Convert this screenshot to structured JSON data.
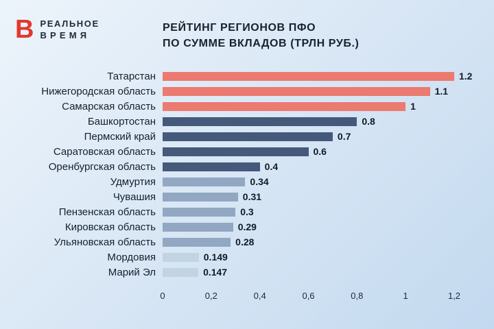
{
  "header": {
    "logo": {
      "mark": "В",
      "line1": "РЕАЛЬНОЕ",
      "line2": "ВРЕМЯ",
      "mark_color": "#e2382c"
    },
    "title_line1": "РЕЙТИНГ РЕГИОНОВ ПФО",
    "title_line2": "ПО СУММЕ ВКЛАДОВ (ТРЛН РУБ.)"
  },
  "chart_data": {
    "type": "bar",
    "orientation": "horizontal",
    "title": "РЕЙТИНГ РЕГИОНОВ ПФО ПО СУММЕ ВКЛАДОВ (ТРЛН РУБ.)",
    "categories": [
      "Татарстан",
      "Нижегородская область",
      "Самарская область",
      "Башкортостан",
      "Пермский край",
      "Саратовская область",
      "Оренбургская область",
      "Удмуртия",
      "Чувашия",
      "Пензенская область",
      "Кировская область",
      "Ульяновская область",
      "Мордовия",
      "Марий Эл"
    ],
    "values": [
      1.2,
      1.1,
      1,
      0.8,
      0.7,
      0.6,
      0.4,
      0.34,
      0.31,
      0.3,
      0.29,
      0.28,
      0.149,
      0.147
    ],
    "value_labels": [
      "1.2",
      "1.1",
      "1",
      "0.8",
      "0.7",
      "0.6",
      "0.4",
      "0.34",
      "0.31",
      "0.3",
      "0.29",
      "0.28",
      "0.149",
      "0.147"
    ],
    "bar_color_keys": [
      "coral",
      "coral",
      "coral",
      "dark",
      "dark",
      "dark",
      "dark",
      "medium",
      "medium",
      "medium",
      "medium",
      "medium",
      "light",
      "light"
    ],
    "colors": {
      "coral": "#ec7a70",
      "dark": "#45597b",
      "medium": "#92a7c2",
      "light": "#c2d3e2"
    },
    "xlim": [
      0,
      1.2
    ],
    "x_ticks": [
      0,
      0.2,
      0.4,
      0.6,
      0.8,
      1,
      1.2
    ],
    "x_tick_labels": [
      "0",
      "0,2",
      "0,4",
      "0,6",
      "0,8",
      "1",
      "1,2"
    ],
    "grid": false,
    "legend": "none"
  }
}
